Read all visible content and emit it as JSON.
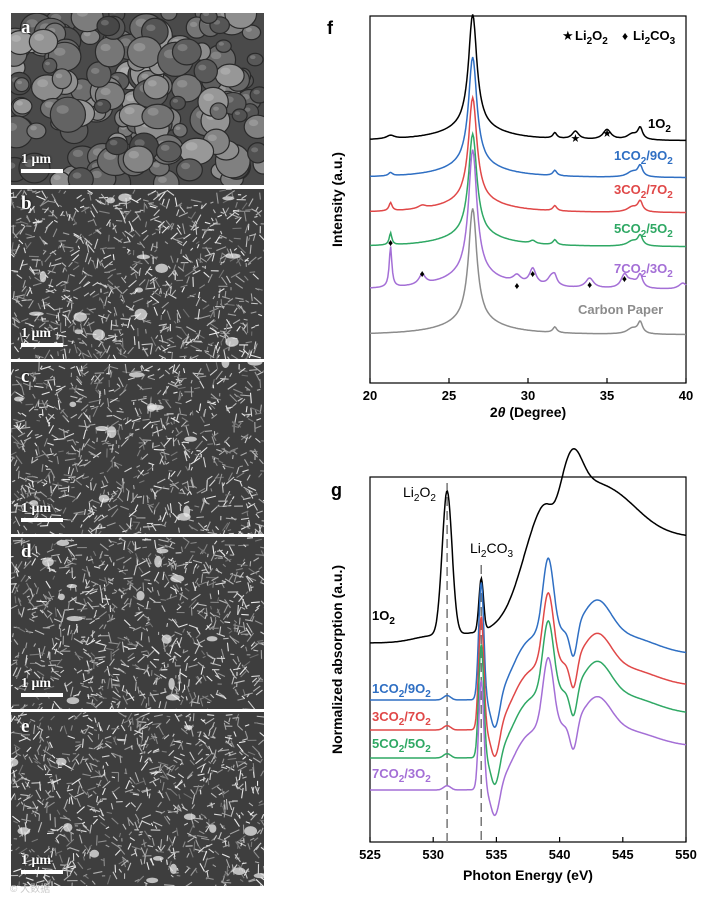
{
  "sem_panels": [
    {
      "letter": "a",
      "scale": "1 μm",
      "morph": "grains"
    },
    {
      "letter": "b",
      "scale": "1 μm",
      "morph": "flakes"
    },
    {
      "letter": "c",
      "scale": "1 μm",
      "morph": "flakes"
    },
    {
      "letter": "d",
      "scale": "1 μm",
      "morph": "flakes"
    },
    {
      "letter": "e",
      "scale": "1 μm",
      "morph": "flakes"
    }
  ],
  "watermark": "© 大数据",
  "chart_data": [
    {
      "panel": "f",
      "type": "line",
      "xlabel_prefix": "2",
      "xlabel_theta": "θ",
      "xlabel_suffix": " (Degree)",
      "ylabel": "Intensity (a.u.)",
      "xlim": [
        20,
        40
      ],
      "xticks": [
        20,
        25,
        30,
        35,
        40
      ],
      "legend": {
        "star_label": "Li₂O₂",
        "diamond_label": "Li₂CO₃",
        "position": "top-right"
      },
      "series": [
        {
          "name": "1O₂",
          "label_main": "1O",
          "label_sub": "2",
          "color": "#000000",
          "offset": 5,
          "id": "o2"
        },
        {
          "name": "1CO₂/9O₂",
          "label_main": "1CO",
          "label_sub": "2",
          "label_mid": "/9O",
          "label_sub2": "2",
          "color": "#2f6fc3",
          "offset": 4,
          "id": "c1"
        },
        {
          "name": "3CO₂/7O₂",
          "label_main": "3CO",
          "label_sub": "2",
          "label_mid": "/7O",
          "label_sub2": "2",
          "color": "#e04848",
          "offset": 3,
          "id": "c3"
        },
        {
          "name": "5CO₂/5O₂",
          "label_main": "5CO",
          "label_sub": "2",
          "label_mid": "/5O",
          "label_sub2": "2",
          "color": "#2fa864",
          "offset": 2,
          "id": "c5"
        },
        {
          "name": "7CO₂/3O₂",
          "label_main": "7CO",
          "label_sub": "2",
          "label_mid": "/3O",
          "label_sub2": "2",
          "color": "#a46fd6",
          "offset": 1,
          "id": "c7"
        },
        {
          "name": "Carbon Paper",
          "label_main": "Carbon Paper",
          "color": "#8c8c8c",
          "offset": 0,
          "id": "cp"
        }
      ],
      "star_markers": [
        33.0,
        35.0
      ],
      "diamond_markers": [
        21.3,
        23.3,
        29.3,
        30.3,
        33.9,
        36.1
      ]
    },
    {
      "panel": "g",
      "type": "line",
      "xlabel": "Photon Energy (eV)",
      "ylabel": "Normalized absorption (a.u.)",
      "xlim": [
        525,
        550
      ],
      "xticks": [
        525,
        530,
        535,
        540,
        545,
        550
      ],
      "annotations": [
        {
          "text_main": "Li",
          "text_sub": "2",
          "text_mid": "O",
          "text_sub2": "2",
          "x": 531.1
        },
        {
          "text_main": "Li",
          "text_sub": "2",
          "text_mid": "CO",
          "text_sub2": "3",
          "x": 533.8
        }
      ],
      "series": [
        {
          "name": "1O₂",
          "label_main": "1O",
          "label_sub": "2",
          "color": "#000000",
          "id": "o2"
        },
        {
          "name": "1CO₂/9O₂",
          "label_main": "1CO",
          "label_sub": "2",
          "label_mid": "/9O",
          "label_sub2": "2",
          "color": "#2f6fc3",
          "id": "c1"
        },
        {
          "name": "3CO₂/7O₂",
          "label_main": "3CO",
          "label_sub": "2",
          "label_mid": "/7O",
          "label_sub2": "2",
          "color": "#e04848",
          "id": "c3"
        },
        {
          "name": "5CO₂/5O₂",
          "label_main": "5CO",
          "label_sub": "2",
          "label_mid": "/5O",
          "label_sub2": "2",
          "color": "#2fa864",
          "id": "c5"
        },
        {
          "name": "7CO₂/3O₂",
          "label_main": "7CO",
          "label_sub": "2",
          "label_mid": "/3O",
          "label_sub2": "2",
          "color": "#a46fd6",
          "id": "c7"
        }
      ]
    }
  ]
}
